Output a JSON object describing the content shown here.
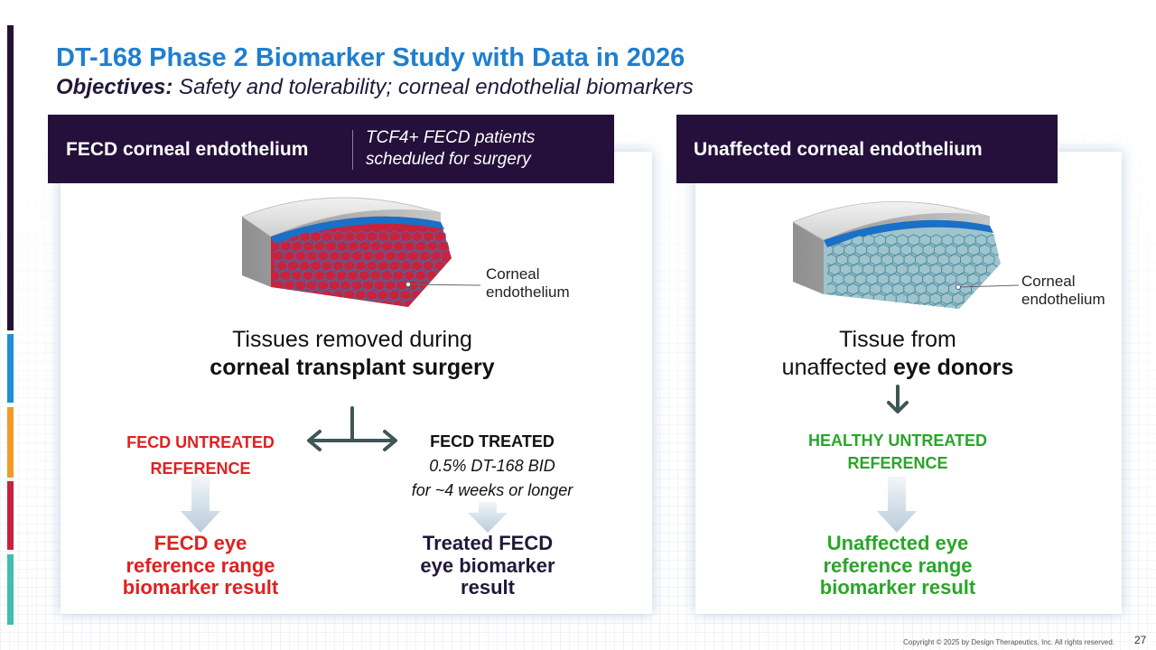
{
  "title": "DT-168 Phase 2 Biomarker Study with Data in 2026",
  "subtitle": {
    "lead": "Objectives:",
    "rest": " Safety and tolerability; corneal endothelial biomarkers"
  },
  "left_panel": {
    "header_title": "FECD corneal endothelium",
    "header_note_line1": "TCF4+ FECD patients",
    "header_note_line2": "scheduled for surgery",
    "cell_label_line1": "Corneal",
    "cell_label_line2": "endothelium",
    "source_line1": "Tissues removed during",
    "source_line2": "corneal transplant surgery",
    "untreated_line1": "FECD UNTREATED",
    "untreated_line2": "REFERENCE",
    "treated_title": "FECD TREATED",
    "treated_dose": "0.5% DT-168 BID",
    "treated_duration": "for ~4 weeks or longer",
    "result_untreated": [
      "FECD eye",
      "reference range",
      "biomarker result"
    ],
    "result_treated": [
      "Treated FECD",
      "eye biomarker",
      "result"
    ]
  },
  "right_panel": {
    "header_title": "Unaffected corneal endothelium",
    "cell_label_line1": "Corneal",
    "cell_label_line2": "endothelium",
    "source_line1": "Tissue from",
    "source_line2_plain": "unaffected ",
    "source_line2_bold": "eye donors",
    "reference_line1": "HEALTHY UNTREATED",
    "reference_line2": "REFERENCE",
    "result": [
      "Unaffected eye",
      "reference range",
      "biomarker result"
    ]
  },
  "footer": "Copyright © 2025 by Design Therapeutics, Inc. All rights reserved.",
  "page_number": "27",
  "colors": {
    "title_blue": "#1f7fce",
    "header_purple": "#24103a",
    "fecd_red": "#e02020",
    "healthy_green": "#2aa52a",
    "dark_text": "#22183a",
    "sidebar": [
      "#24103a",
      "#1e8fd6",
      "#f29a28",
      "#c8203f",
      "#3fbfae"
    ]
  }
}
